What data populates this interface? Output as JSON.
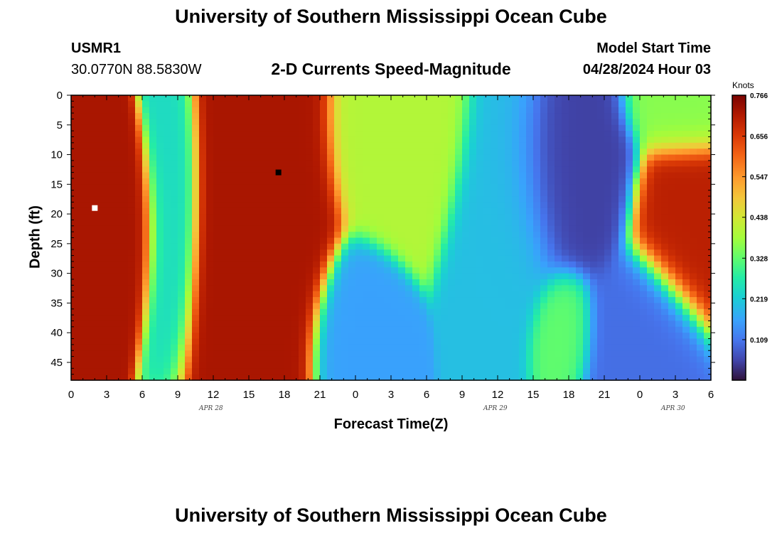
{
  "header": {
    "title": "University of Southern Mississippi Ocean Cube",
    "station_id": "USMR1",
    "station_coords": "30.0770N  88.5830W",
    "plot_title": "2-D Currents Speed-Magnitude",
    "model_start_label": "Model Start Time",
    "model_start_value": "04/28/2024 Hour 03"
  },
  "footer": {
    "title": "University of Southern Mississippi Ocean Cube"
  },
  "colorbar": {
    "unit": "Knots",
    "ticks": [
      "0.766",
      "0.656",
      "0.547",
      "0.438",
      "0.328",
      "0.219",
      "0.109"
    ],
    "range": [
      0.0,
      0.766
    ]
  },
  "chart_data": {
    "type": "heatmap",
    "title": "2-D Currents Speed-Magnitude",
    "xlabel": "Forecast Time(Z)",
    "ylabel": "Depth (ft)",
    "x_tick_labels": [
      "0",
      "3",
      "6",
      "9",
      "12",
      "15",
      "18",
      "21",
      "0",
      "3",
      "6",
      "9",
      "12",
      "15",
      "18",
      "21",
      "0",
      "3",
      "6"
    ],
    "date_labels": [
      "APR 28",
      "APR 29",
      "APR 30"
    ],
    "y_tick_labels": [
      "0",
      "5",
      "10",
      "15",
      "20",
      "25",
      "30",
      "35",
      "40",
      "45"
    ],
    "x_range_hours": [
      0,
      54
    ],
    "y_range_ft": [
      0,
      48
    ],
    "value_range_knots": [
      0.0,
      0.766
    ],
    "markers": [
      {
        "name": "max",
        "x_hour": 2,
        "depth_ft": 19,
        "color": "#ffffff"
      },
      {
        "name": "min",
        "x_hour": 17.5,
        "depth_ft": 13,
        "color": "#000000"
      }
    ],
    "features": [
      {
        "x_hour": 2,
        "depth_ft": 20,
        "value": 0.72,
        "sx": 3.0,
        "sy": 9
      },
      {
        "x_hour": 8.5,
        "depth_ft": 15,
        "value": 0.24,
        "sx": 1.3,
        "sy": 14
      },
      {
        "x_hour": 15.5,
        "depth_ft": 15,
        "value": 0.72,
        "sx": 3.2,
        "sy": 22
      },
      {
        "x_hour": 24.5,
        "depth_ft": 42,
        "value": 0.16,
        "sx": 2.0,
        "sy": 8
      },
      {
        "x_hour": 28,
        "depth_ft": 5,
        "value": 0.4,
        "sx": 3.0,
        "sy": 10
      },
      {
        "x_hour": 37,
        "depth_ft": 18,
        "value": 0.2,
        "sx": 2.5,
        "sy": 14
      },
      {
        "x_hour": 41.5,
        "depth_ft": 13,
        "value": 0.05,
        "sx": 3.0,
        "sy": 10
      },
      {
        "x_hour": 41.5,
        "depth_ft": 40,
        "value": 0.33,
        "sx": 1.5,
        "sy": 6
      },
      {
        "x_hour": 48,
        "depth_ft": 42,
        "value": 0.1,
        "sx": 3.0,
        "sy": 8
      },
      {
        "x_hour": 53.5,
        "depth_ft": 22,
        "value": 0.7,
        "sx": 3.0,
        "sy": 9
      },
      {
        "x_hour": 53,
        "depth_ft": 2,
        "value": 0.36,
        "sx": 3.0,
        "sy": 5
      }
    ]
  }
}
